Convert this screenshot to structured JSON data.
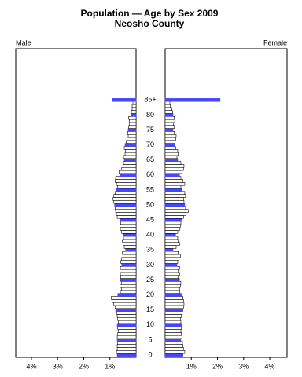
{
  "chart_data": {
    "type": "population-pyramid",
    "title": "Population — Age by Sex 2009",
    "subtitle": "Neosho County",
    "categories": [
      "0",
      null,
      null,
      null,
      null,
      "5",
      null,
      null,
      null,
      null,
      "10",
      null,
      null,
      null,
      null,
      "15",
      null,
      null,
      null,
      null,
      "20",
      null,
      null,
      null,
      null,
      "25",
      null,
      null,
      null,
      null,
      "30",
      null,
      null,
      null,
      null,
      "35",
      null,
      null,
      null,
      null,
      "40",
      null,
      null,
      null,
      null,
      "45",
      null,
      null,
      null,
      null,
      "50",
      null,
      null,
      null,
      null,
      "55",
      null,
      null,
      null,
      null,
      "60",
      null,
      null,
      null,
      null,
      "65",
      null,
      null,
      null,
      null,
      "70",
      null,
      null,
      null,
      null,
      "75",
      null,
      null,
      null,
      null,
      "80",
      null,
      null,
      null,
      null,
      "85+"
    ],
    "series": [
      {
        "name": "Male",
        "color": "#4646ff",
        "values": [
          0.72,
          0.75,
          0.72,
          0.72,
          0.7,
          0.72,
          0.72,
          0.7,
          0.68,
          0.7,
          0.72,
          0.68,
          0.7,
          0.72,
          0.74,
          0.78,
          0.8,
          0.85,
          0.92,
          0.95,
          0.7,
          0.6,
          0.55,
          0.62,
          0.55,
          0.62,
          0.58,
          0.6,
          0.62,
          0.6,
          0.55,
          0.58,
          0.55,
          0.5,
          0.52,
          0.4,
          0.45,
          0.5,
          0.52,
          0.48,
          0.5,
          0.55,
          0.6,
          0.62,
          0.58,
          0.62,
          0.72,
          0.75,
          0.78,
          0.8,
          0.82,
          0.85,
          0.88,
          0.85,
          0.8,
          0.75,
          0.7,
          0.75,
          0.8,
          0.78,
          0.6,
          0.65,
          0.55,
          0.5,
          0.48,
          0.45,
          0.48,
          0.42,
          0.4,
          0.45,
          0.42,
          0.38,
          0.35,
          0.3,
          0.32,
          0.3,
          0.28,
          0.25,
          0.25,
          0.28,
          0.2,
          0.18,
          0.15,
          0.15,
          0.12,
          0.92
        ]
      },
      {
        "name": "Female",
        "color": "#4646ff",
        "values": [
          0.68,
          0.75,
          0.7,
          0.68,
          0.66,
          0.6,
          0.65,
          0.62,
          0.6,
          0.62,
          0.62,
          0.6,
          0.58,
          0.62,
          0.65,
          0.68,
          0.7,
          0.72,
          0.7,
          0.68,
          0.62,
          0.55,
          0.55,
          0.58,
          0.6,
          0.55,
          0.5,
          0.55,
          0.5,
          0.55,
          0.45,
          0.48,
          0.52,
          0.58,
          0.5,
          0.3,
          0.42,
          0.55,
          0.5,
          0.48,
          0.4,
          0.48,
          0.55,
          0.58,
          0.6,
          0.62,
          0.7,
          0.8,
          0.88,
          0.78,
          0.75,
          0.72,
          0.7,
          0.78,
          0.75,
          0.65,
          0.6,
          0.75,
          0.68,
          0.6,
          0.55,
          0.65,
          0.7,
          0.72,
          0.6,
          0.48,
          0.45,
          0.5,
          0.48,
          0.4,
          0.35,
          0.38,
          0.4,
          0.42,
          0.35,
          0.3,
          0.35,
          0.32,
          0.38,
          0.35,
          0.3,
          0.28,
          0.25,
          0.2,
          0.18,
          2.1
        ]
      }
    ],
    "xlim": [
      0,
      4.6
    ],
    "xticks": [
      {
        "value": 1,
        "label": "1%"
      },
      {
        "value": 2,
        "label": "2%"
      },
      {
        "value": 3,
        "label": "3%"
      },
      {
        "value": 4,
        "label": "4%"
      }
    ]
  }
}
